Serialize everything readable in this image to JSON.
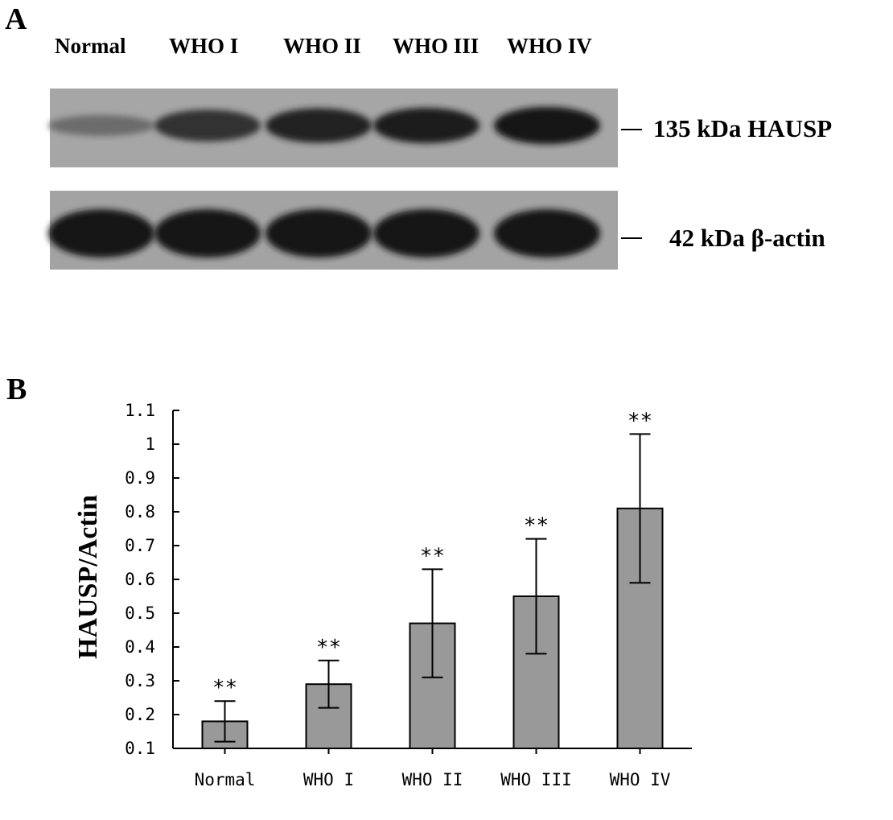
{
  "panel_a": {
    "letter": "A",
    "lanes": [
      "Normal",
      "WHO I",
      "WHO II",
      "WHO III",
      "WHO IV"
    ],
    "bands": [
      {
        "label": "135 kDa  HAUSP",
        "intensity": [
          0.35,
          0.75,
          0.85,
          0.88,
          0.95
        ]
      },
      {
        "label": "42 kDa  β-actin",
        "intensity": [
          0.95,
          0.95,
          0.95,
          0.95,
          0.95
        ]
      }
    ]
  },
  "panel_b": {
    "letter": "B"
  },
  "chart_data": {
    "type": "bar",
    "categories": [
      "Normal",
      "WHO I",
      "WHO II",
      "WHO III",
      "WHO IV"
    ],
    "values": [
      0.18,
      0.29,
      0.47,
      0.55,
      0.81
    ],
    "error": [
      0.06,
      0.07,
      0.16,
      0.17,
      0.22
    ],
    "annotations": [
      "**",
      "**",
      "**",
      "**",
      "**"
    ],
    "title": "",
    "xlabel": "",
    "ylabel": "HAUSP/Actin",
    "ylim": [
      0.1,
      1.1
    ],
    "yticks": [
      "0.1",
      "0.2",
      "0.3",
      "0.4",
      "0.5",
      "0.6",
      "0.7",
      "0.8",
      "0.9",
      "1",
      "1.1"
    ],
    "bar_color": "#999999",
    "grid": false
  }
}
